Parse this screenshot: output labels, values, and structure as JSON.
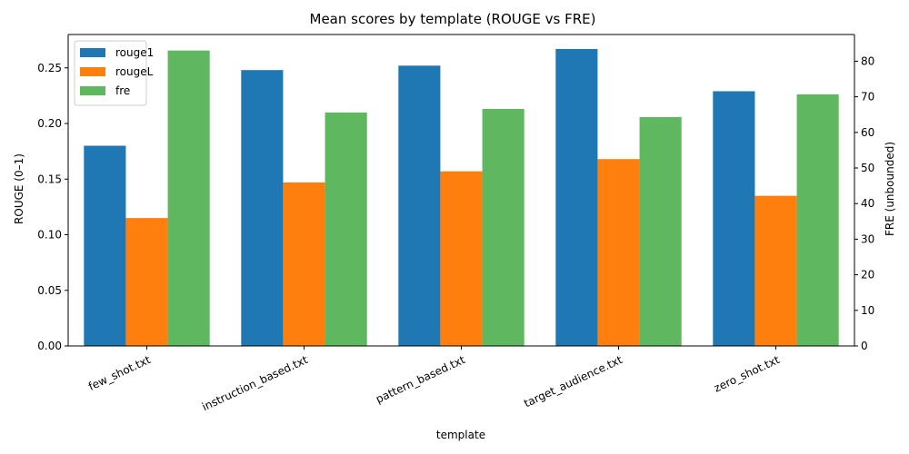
{
  "chart_data": {
    "type": "bar",
    "title": "Mean scores by template (ROUGE vs FRE)",
    "xlabel": "template",
    "ylabel": "ROUGE (0–1)",
    "y2label": "FRE (unbounded)",
    "categories": [
      "few_shot.txt",
      "instruction_based.txt",
      "pattern_based.txt",
      "target_audience.txt",
      "zero_shot.txt"
    ],
    "ylim": [
      0,
      0.28
    ],
    "y2lim": [
      0,
      87.5
    ],
    "yticks": [
      "0.00",
      "0.05",
      "0.10",
      "0.15",
      "0.20",
      "0.25"
    ],
    "y2ticks": [
      "0",
      "10",
      "20",
      "30",
      "40",
      "50",
      "60",
      "70",
      "80"
    ],
    "grid": false,
    "legend_position": "top-left",
    "series": [
      {
        "name": "rouge1",
        "axis": "left",
        "color": "#1f77b4",
        "values": [
          0.18,
          0.248,
          0.252,
          0.267,
          0.229
        ]
      },
      {
        "name": "rougeL",
        "axis": "left",
        "color": "#ff7f0e",
        "values": [
          0.115,
          0.147,
          0.157,
          0.168,
          0.135
        ]
      },
      {
        "name": "fre",
        "axis": "right",
        "color": "#5fb760",
        "values": [
          83.0,
          65.6,
          66.6,
          64.3,
          70.7
        ]
      }
    ]
  }
}
